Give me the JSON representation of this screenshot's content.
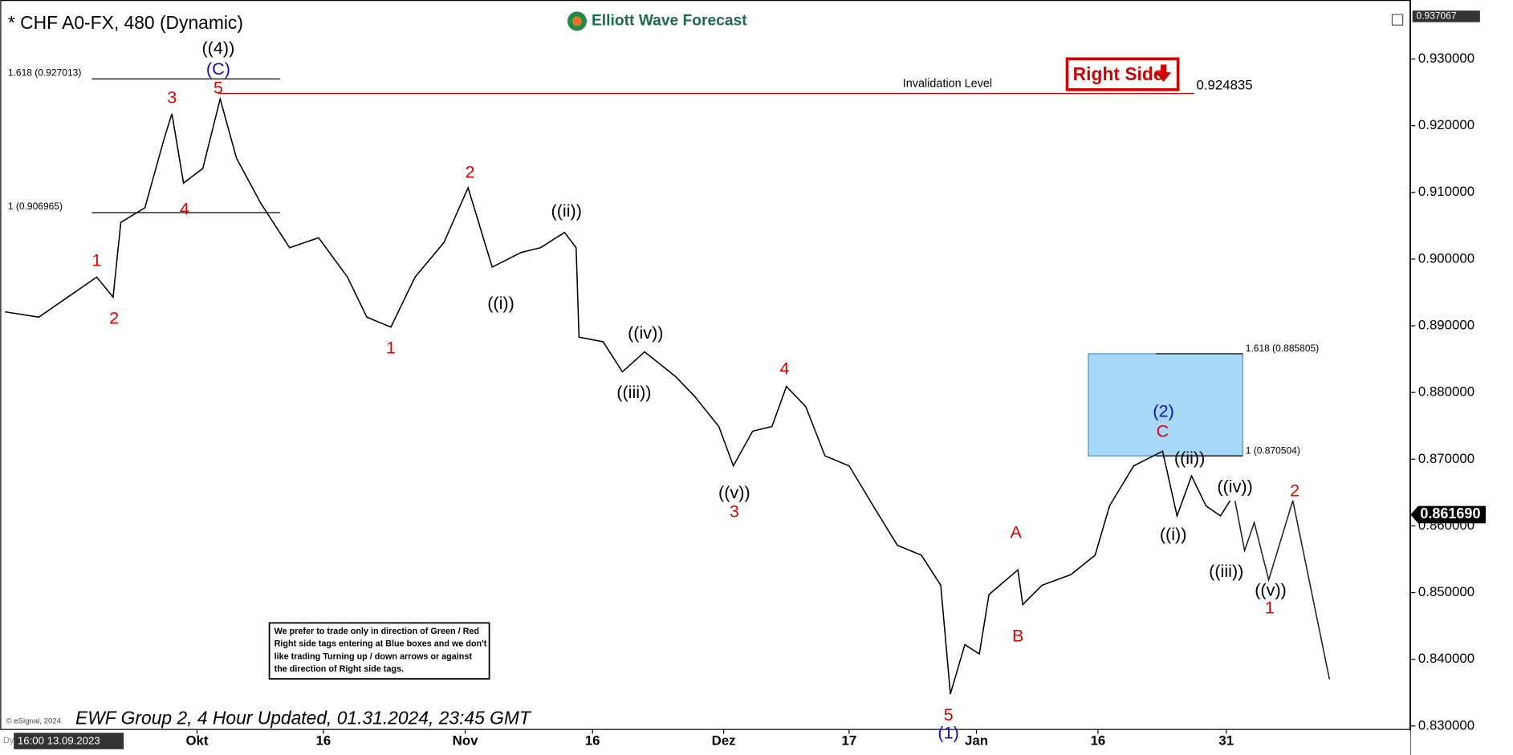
{
  "chart_data": {
    "type": "line",
    "title": "* CHF A0-FX, 480 (Dynamic)",
    "logo": "Elliott Wave Forecast",
    "tag": "Right Side",
    "footer": "EWF Group 2, 4 Hour Updated, 01.31.2024, 23:45 GMT",
    "copyright": "© eSignal, 2024",
    "mode": "Dyn",
    "start_time": "16:00 13.09.2023",
    "note": [
      "We prefer to trade only in direction of Green / Red",
      "Right side tags entering at Blue boxes and we don't",
      "like trading Turning up / down arrows or against",
      "the direction of Right side tags."
    ],
    "xlim": [
      0,
      145.5
    ],
    "ylim": [
      0.8297,
      0.9374
    ],
    "xticks": [
      {
        "value": 19.9,
        "label": "Okt"
      },
      {
        "value": 33,
        "label": "16"
      },
      {
        "value": 47.7,
        "label": "Nov"
      },
      {
        "value": 60.9,
        "label": "16"
      },
      {
        "value": 74.5,
        "label": "Dez"
      },
      {
        "value": 87.5,
        "label": "17"
      },
      {
        "value": 100.7,
        "label": "Jan"
      },
      {
        "value": 113.3,
        "label": "16"
      },
      {
        "value": 126.6,
        "label": "31"
      }
    ],
    "yticks": [
      {
        "value": 0.93,
        "label": "0.930000"
      },
      {
        "value": 0.92,
        "label": "0.920000"
      },
      {
        "value": 0.91,
        "label": "0.910000"
      },
      {
        "value": 0.9,
        "label": "0.900000"
      },
      {
        "value": 0.89,
        "label": "0.890000"
      },
      {
        "value": 0.88,
        "label": "0.880000"
      },
      {
        "value": 0.87,
        "label": "0.870000"
      },
      {
        "value": 0.86,
        "label": "0.860000"
      },
      {
        "value": 0.85,
        "label": "0.850000"
      },
      {
        "value": 0.84,
        "label": "0.840000"
      },
      {
        "value": 0.83,
        "label": "0.830000"
      }
    ],
    "top_price": {
      "value": 0.937067,
      "label": "0.937067"
    },
    "last_price": {
      "value": 0.86169,
      "label": "0.861690"
    },
    "series": [
      {
        "color": "#000000",
        "x": [
          0,
          3.5,
          6.5,
          9.5,
          11.2,
          12,
          14.5,
          16.5,
          17.3,
          18.5,
          20.5,
          22.3,
          24,
          26.5,
          29.5,
          32.5,
          35.5,
          37.5,
          40,
          42.5,
          45.5,
          48,
          50.5,
          53.5,
          55.5,
          58,
          59.2,
          59.5,
          62,
          64,
          66.3,
          69.5,
          71.5,
          74,
          75.5,
          77.5,
          79.5,
          81,
          83,
          85,
          87.5,
          90,
          92.5,
          95,
          97,
          98,
          99.5,
          101,
          102,
          105,
          105.5,
          107.5,
          110.5,
          113,
          114.5,
          117,
          120,
          121.5,
          123,
          124.5,
          126,
          127
        ],
        "values": [
          0.8921,
          0.8913,
          0.8943,
          0.8973,
          0.8943,
          0.9055,
          0.9077,
          0.9181,
          0.9218,
          0.9114,
          0.9136,
          0.924,
          0.9151,
          0.9084,
          0.9017,
          0.9032,
          0.8973,
          0.8913,
          0.8898,
          0.8973,
          0.9025,
          0.9107,
          0.8988,
          0.901,
          0.9017,
          0.904,
          0.9017,
          0.8883,
          0.8876,
          0.8831,
          0.8861,
          0.8824,
          0.8794,
          0.8749,
          0.869,
          0.8742,
          0.8749,
          0.8809,
          0.8779,
          0.8705,
          0.869,
          0.863,
          0.8571,
          0.8556,
          0.8511,
          0.8348,
          0.8422,
          0.8408,
          0.8497,
          0.8534,
          0.8482,
          0.8511,
          0.8527,
          0.8556,
          0.863,
          0.869,
          0.8712,
          0.8615,
          0.8675,
          0.863,
          0.8615,
          0.8638
        ]
      },
      {
        "color": "#222222",
        "x": [
          127.5,
          128.5,
          129.5,
          131,
          133.5,
          137.3
        ],
        "values": [
          0.8638,
          0.8563,
          0.8605,
          0.8519,
          0.8638,
          0.837
        ]
      }
    ],
    "invalidation": {
      "text": "Invalidation Level",
      "value": 0.924835,
      "label": "0.924835",
      "x": [
        22.1,
        123.3
      ]
    },
    "levels": [
      {
        "label": "1.618 (0.927013)",
        "value": 0.927013,
        "x": [
          9,
          28.5
        ]
      },
      {
        "label": "1 (0.906965)",
        "value": 0.906965,
        "x": [
          9,
          28.5
        ]
      },
      {
        "label": "1.618 (0.885805)",
        "value": 0.885805,
        "x": [
          119.3,
          128.3
        ]
      },
      {
        "label": "1 (0.870504)",
        "value": 0.870504,
        "x": [
          119.3,
          128.3
        ]
      }
    ],
    "box_x": [
      112.3,
      128.3
    ],
    "annotations": [
      {
        "text": "((4))",
        "x": 22.1,
        "y": 0.93149,
        "color": "#000000"
      },
      {
        "text": "(C)",
        "x": 22.1,
        "y": 0.92836,
        "color": "#1010c0"
      },
      {
        "text": "5",
        "x": 22.1,
        "y": 0.92554,
        "color": "#e00000"
      },
      {
        "text": "3",
        "x": 17.3,
        "y": 0.92405,
        "color": "#e00000"
      },
      {
        "text": "4",
        "x": 18.6,
        "y": 0.90738,
        "color": "#e00000"
      },
      {
        "text": "1",
        "x": 9.5,
        "y": 0.89964,
        "color": "#e00000"
      },
      {
        "text": "2",
        "x": 11.3,
        "y": 0.89101,
        "color": "#e00000"
      },
      {
        "text": "2",
        "x": 48.2,
        "y": 0.91289,
        "color": "#e00000"
      },
      {
        "text": "1",
        "x": 40,
        "y": 0.88655,
        "color": "#e00000"
      },
      {
        "text": "((i))",
        "x": 51.4,
        "y": 0.89324,
        "color": "#000000"
      },
      {
        "text": "((ii))",
        "x": 58.2,
        "y": 0.90708,
        "color": "#000000"
      },
      {
        "text": "((iv))",
        "x": 66.4,
        "y": 0.88878,
        "color": "#000000"
      },
      {
        "text": "((iii))",
        "x": 65.2,
        "y": 0.87985,
        "color": "#000000"
      },
      {
        "text": "((v))",
        "x": 75.6,
        "y": 0.86482,
        "color": "#000000"
      },
      {
        "text": "3",
        "x": 75.6,
        "y": 0.86199,
        "color": "#e00000"
      },
      {
        "text": "4",
        "x": 80.8,
        "y": 0.88342,
        "color": "#e00000"
      },
      {
        "text": "A",
        "x": 104.8,
        "y": 0.85887,
        "color": "#e00000"
      },
      {
        "text": "B",
        "x": 105,
        "y": 0.84339,
        "color": "#e00000"
      },
      {
        "text": "5",
        "x": 97.8,
        "y": 0.83149,
        "color": "#e00000"
      },
      {
        "text": "(1)",
        "x": 97.8,
        "y": 0.82881,
        "color": "#1010c0"
      },
      {
        "text": "(2)",
        "x": 120.1,
        "y": 0.87702,
        "color": "#1010c0"
      },
      {
        "text": "C",
        "x": 120,
        "y": 0.87405,
        "color": "#e00000"
      },
      {
        "text": "((ii))",
        "x": 122.8,
        "y": 0.87003,
        "color": "#000000"
      },
      {
        "text": "((i))",
        "x": 121.1,
        "y": 0.85857,
        "color": "#000000"
      },
      {
        "text": "((iv))",
        "x": 127.5,
        "y": 0.86571,
        "color": "#000000"
      },
      {
        "text": "((iii))",
        "x": 126.6,
        "y": 0.85307,
        "color": "#000000"
      },
      {
        "text": "((v))",
        "x": 131.2,
        "y": 0.85024,
        "color": "#000000"
      },
      {
        "text": "1",
        "x": 131.1,
        "y": 0.84756,
        "color": "#e00000"
      },
      {
        "text": "2",
        "x": 133.7,
        "y": 0.86512,
        "color": "#e00000"
      }
    ]
  }
}
